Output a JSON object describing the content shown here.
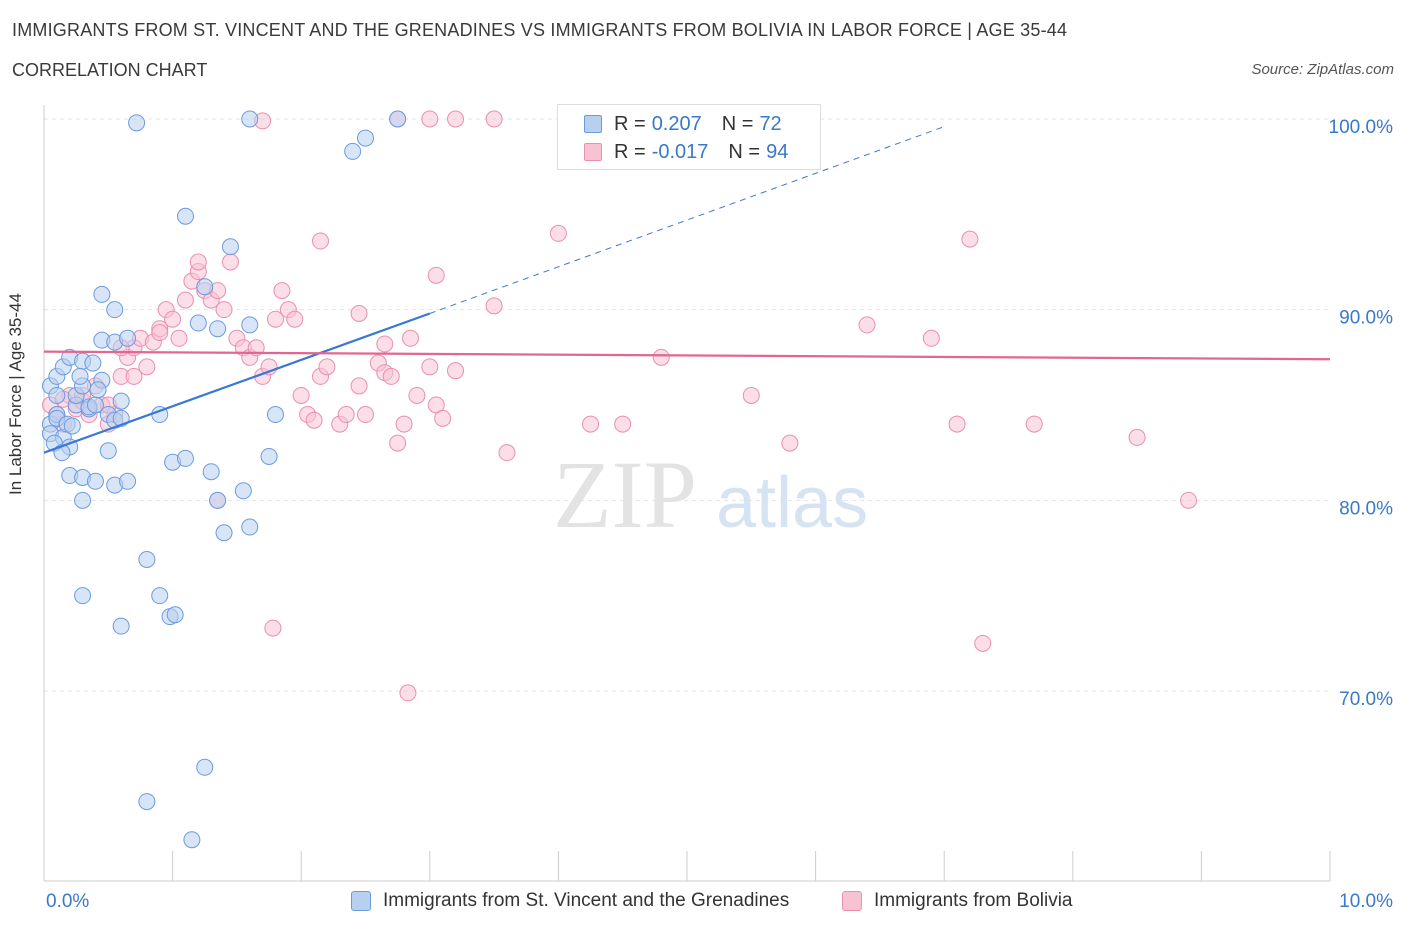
{
  "header": {
    "title": "IMMIGRANTS FROM ST. VINCENT AND THE GRENADINES VS IMMIGRANTS FROM BOLIVIA IN LABOR FORCE | AGE 35-44",
    "subtitle": "CORRELATION CHART",
    "source": "Source: ZipAtlas.com"
  },
  "legend": {
    "r_label": "R =",
    "n_label": "N =",
    "series": [
      {
        "r": "0.207",
        "n": "72"
      },
      {
        "r": "-0.017",
        "n": "94"
      }
    ]
  },
  "watermark": {
    "zip": "ZIP",
    "atlas": "atlas"
  },
  "colors": {
    "blue_fill": "#b8d0f0",
    "blue_stroke": "#6b9be0",
    "blue_line": "#3a78d6",
    "pink_fill": "#f7c3d3",
    "pink_stroke": "#ea8fae",
    "pink_line": "#e2668f",
    "tick_text": "#3a78c9",
    "grid": "#e3e3e3"
  },
  "chart_data": {
    "type": "scatter",
    "xlabel": "",
    "ylabel": "In Labor Force | Age 35-44",
    "xlim": [
      0,
      10
    ],
    "ylim": [
      60,
      100
    ],
    "x_tick_labels": [
      "0.0%",
      "10.0%"
    ],
    "y_ticks": [
      70,
      80,
      90,
      100
    ],
    "y_tick_labels": [
      "70.0%",
      "80.0%",
      "90.0%",
      "100.0%"
    ],
    "grid": true,
    "legend_position": "top-center",
    "series": [
      {
        "name": "Immigrants from St. Vincent and the Grenadines",
        "color": "blue",
        "trend": {
          "x": [
            0.0,
            3.0
          ],
          "y": [
            82.5,
            89.8
          ],
          "dashed_to": [
            7.0,
            99.6
          ]
        },
        "points": [
          [
            0.05,
            86.0
          ],
          [
            0.1,
            86.5
          ],
          [
            0.1,
            85.5
          ],
          [
            0.15,
            87.0
          ],
          [
            0.2,
            87.5
          ],
          [
            0.25,
            85.0
          ],
          [
            0.3,
            87.3
          ],
          [
            0.35,
            84.8
          ],
          [
            0.05,
            84.0
          ],
          [
            0.05,
            83.5
          ],
          [
            0.1,
            84.5
          ],
          [
            0.15,
            83.3
          ],
          [
            0.2,
            82.8
          ],
          [
            0.25,
            85.5
          ],
          [
            0.3,
            86.0
          ],
          [
            0.35,
            84.9
          ],
          [
            0.4,
            85.0
          ],
          [
            0.45,
            86.3
          ],
          [
            0.5,
            84.5
          ],
          [
            0.55,
            84.2
          ],
          [
            0.6,
            85.2
          ],
          [
            0.6,
            84.3
          ],
          [
            0.5,
            82.6
          ],
          [
            0.2,
            81.3
          ],
          [
            0.3,
            81.2
          ],
          [
            0.4,
            81.0
          ],
          [
            0.55,
            80.8
          ],
          [
            0.65,
            81.0
          ],
          [
            0.3,
            80.0
          ],
          [
            0.45,
            90.8
          ],
          [
            0.55,
            90.0
          ],
          [
            0.45,
            88.4
          ],
          [
            0.55,
            88.3
          ],
          [
            0.65,
            88.5
          ],
          [
            0.9,
            84.5
          ],
          [
            1.0,
            82.0
          ],
          [
            1.1,
            82.2
          ],
          [
            1.3,
            81.5
          ],
          [
            1.35,
            80.0
          ],
          [
            1.4,
            78.3
          ],
          [
            1.55,
            80.5
          ],
          [
            1.6,
            78.6
          ],
          [
            1.75,
            82.3
          ],
          [
            1.8,
            84.5
          ],
          [
            0.3,
            75.0
          ],
          [
            0.6,
            73.4
          ],
          [
            0.8,
            76.9
          ],
          [
            0.9,
            75.0
          ],
          [
            0.98,
            73.9
          ],
          [
            1.02,
            74.0
          ],
          [
            0.8,
            64.2
          ],
          [
            1.15,
            62.2
          ],
          [
            1.25,
            66.0
          ],
          [
            1.1,
            94.9
          ],
          [
            1.25,
            91.2
          ],
          [
            1.35,
            89.0
          ],
          [
            1.45,
            93.3
          ],
          [
            1.6,
            89.2
          ],
          [
            1.2,
            89.3
          ],
          [
            0.72,
            99.8
          ],
          [
            1.6,
            100.0
          ],
          [
            2.4,
            98.3
          ],
          [
            2.5,
            99.0
          ],
          [
            2.75,
            100.0
          ],
          [
            0.1,
            84.3
          ],
          [
            0.18,
            84.0
          ],
          [
            0.28,
            86.5
          ],
          [
            0.38,
            87.2
          ],
          [
            0.42,
            85.8
          ],
          [
            0.08,
            83.0
          ],
          [
            0.14,
            82.5
          ],
          [
            0.22,
            83.9
          ]
        ]
      },
      {
        "name": "Immigrants from Bolivia",
        "color": "pink",
        "trend": {
          "x": [
            0.0,
            10.0
          ],
          "y": [
            87.8,
            87.4
          ]
        },
        "points": [
          [
            0.05,
            85.0
          ],
          [
            0.1,
            84.5
          ],
          [
            0.15,
            84.0
          ],
          [
            0.2,
            85.5
          ],
          [
            0.25,
            84.8
          ],
          [
            0.3,
            85.2
          ],
          [
            0.35,
            84.5
          ],
          [
            0.4,
            86.0
          ],
          [
            0.45,
            85.0
          ],
          [
            0.5,
            84.0
          ],
          [
            0.55,
            84.5
          ],
          [
            0.6,
            86.5
          ],
          [
            0.65,
            87.5
          ],
          [
            0.7,
            88.0
          ],
          [
            0.75,
            88.5
          ],
          [
            0.8,
            87.0
          ],
          [
            0.85,
            88.3
          ],
          [
            0.9,
            89.0
          ],
          [
            0.95,
            90.0
          ],
          [
            1.0,
            89.5
          ],
          [
            1.05,
            88.5
          ],
          [
            1.1,
            90.5
          ],
          [
            1.15,
            91.5
          ],
          [
            1.2,
            92.0
          ],
          [
            1.25,
            91.0
          ],
          [
            1.3,
            90.5
          ],
          [
            1.35,
            91.0
          ],
          [
            1.4,
            90.0
          ],
          [
            1.45,
            92.5
          ],
          [
            1.5,
            88.5
          ],
          [
            1.55,
            88.0
          ],
          [
            1.6,
            87.5
          ],
          [
            1.65,
            88.0
          ],
          [
            1.7,
            86.5
          ],
          [
            1.75,
            87.0
          ],
          [
            1.8,
            89.5
          ],
          [
            1.85,
            91.0
          ],
          [
            1.9,
            90.0
          ],
          [
            1.95,
            89.5
          ],
          [
            2.0,
            85.5
          ],
          [
            2.05,
            84.5
          ],
          [
            2.1,
            84.2
          ],
          [
            2.15,
            86.5
          ],
          [
            2.2,
            87.0
          ],
          [
            2.3,
            84.0
          ],
          [
            2.35,
            84.5
          ],
          [
            2.45,
            86.0
          ],
          [
            2.5,
            84.5
          ],
          [
            2.6,
            87.2
          ],
          [
            2.65,
            86.7
          ],
          [
            2.7,
            86.5
          ],
          [
            2.75,
            83.0
          ],
          [
            2.8,
            84.0
          ],
          [
            2.85,
            88.5
          ],
          [
            2.9,
            85.5
          ],
          [
            3.0,
            87.0
          ],
          [
            3.05,
            85.0
          ],
          [
            3.1,
            84.3
          ],
          [
            3.2,
            86.8
          ],
          [
            3.5,
            90.2
          ],
          [
            3.6,
            82.5
          ],
          [
            4.0,
            94.0
          ],
          [
            4.25,
            84.0
          ],
          [
            4.5,
            84.0
          ],
          [
            4.8,
            87.5
          ],
          [
            5.5,
            85.5
          ],
          [
            5.8,
            83.0
          ],
          [
            6.4,
            89.2
          ],
          [
            6.9,
            88.5
          ],
          [
            7.1,
            84.0
          ],
          [
            7.2,
            93.7
          ],
          [
            7.3,
            72.5
          ],
          [
            7.7,
            84.0
          ],
          [
            8.5,
            83.3
          ],
          [
            8.9,
            80.0
          ],
          [
            1.78,
            73.3
          ],
          [
            2.83,
            69.9
          ],
          [
            1.7,
            99.9
          ],
          [
            2.75,
            100.0
          ],
          [
            3.0,
            100.0
          ],
          [
            3.2,
            100.0
          ],
          [
            3.5,
            100.0
          ],
          [
            1.35,
            80.0
          ],
          [
            0.9,
            88.8
          ],
          [
            1.2,
            92.5
          ],
          [
            0.6,
            88.0
          ],
          [
            0.7,
            86.5
          ],
          [
            0.3,
            85.5
          ],
          [
            0.15,
            85.3
          ],
          [
            3.05,
            91.8
          ],
          [
            2.15,
            93.6
          ],
          [
            2.45,
            89.8
          ],
          [
            2.65,
            88.2
          ],
          [
            0.5,
            85.0
          ]
        ]
      }
    ]
  }
}
